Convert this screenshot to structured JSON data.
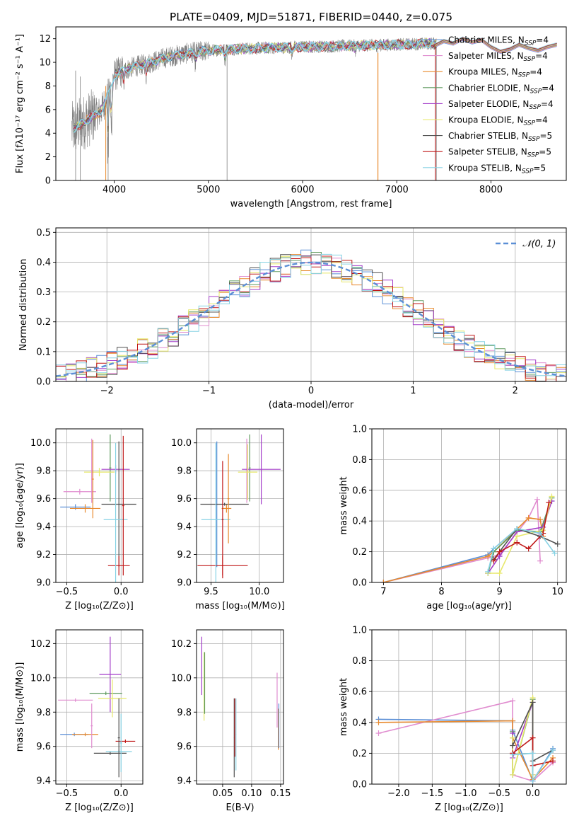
{
  "figure_title": "PLATE=0409, MJD=51871, FIBERID=0440, z=0.075",
  "colors": {
    "Chabrier MILES": "#5b8fd6",
    "Salpeter MILES": "#e08ccf",
    "Kroupa MILES": "#e88a2e",
    "Chabrier ELODIE": "#5f9a5f",
    "Salpeter ELODIE": "#a43ec9",
    "Kroupa ELODIE": "#e7e86a",
    "Chabrier STELIB": "#505050",
    "Salpeter STELIB": "#c01818",
    "Kroupa STELIB": "#86d2e4",
    "data": "#808080",
    "normal": "#5b8fd6"
  },
  "chart_data": [
    {
      "id": "spectrum",
      "type": "line",
      "title": "PLATE=0409, MJD=51871, FIBERID=0440, z=0.075",
      "xlabel": "wavelength [Angstrom, rest frame]",
      "ylabel": "Flux [fλ10⁻¹⁷ erg cm⁻² s⁻¹ A⁻¹]",
      "xlim": [
        3380,
        8800
      ],
      "ylim": [
        0,
        13
      ],
      "xticks": [
        4000,
        5000,
        6000,
        7000,
        8000
      ],
      "yticks": [
        0,
        2,
        4,
        6,
        8,
        10,
        12
      ],
      "grid": false,
      "legend": "right",
      "legend_entries": [
        {
          "base": "Chabrier MILES, N",
          "sub": "SSP",
          "tail": "=4"
        },
        {
          "base": "Salpeter MILES, N",
          "sub": "SSP",
          "tail": "=4"
        },
        {
          "base": "Kroupa MILES, N",
          "sub": "SSP",
          "tail": "=4"
        },
        {
          "base": "Chabrier ELODIE, N",
          "sub": "SSP",
          "tail": "=4"
        },
        {
          "base": "Salpeter ELODIE, N",
          "sub": "SSP",
          "tail": "=4"
        },
        {
          "base": "Kroupa ELODIE, N",
          "sub": "SSP",
          "tail": "=4"
        },
        {
          "base": "Chabrier STELIB, N",
          "sub": "SSP",
          "tail": "=5"
        },
        {
          "base": "Salpeter STELIB, N",
          "sub": "SSP",
          "tail": "=5"
        },
        {
          "base": "Kroupa STELIB, N",
          "sub": "SSP",
          "tail": "=5"
        }
      ],
      "continuum": {
        "x": [
          3550,
          3650,
          3750,
          3850,
          3950,
          4000,
          4100,
          4200,
          4300,
          4400,
          4500,
          4600,
          4800,
          5000,
          5200,
          5500,
          6000,
          6500,
          7000,
          7400
        ],
        "y": [
          4.3,
          4.8,
          5.3,
          5.8,
          7.4,
          8.9,
          9.3,
          9.6,
          9.8,
          10.0,
          10.3,
          10.5,
          10.8,
          11.0,
          11.1,
          11.2,
          11.3,
          11.4,
          11.5,
          11.6
        ]
      },
      "models_extend": {
        "x": [
          7400,
          7500,
          7600,
          7700,
          7800,
          7900,
          8000,
          8100,
          8200,
          8300,
          8400,
          8500,
          8600,
          8700
        ],
        "y": [
          11.4,
          11.8,
          11.6,
          12.0,
          11.7,
          11.9,
          11.3,
          10.9,
          11.1,
          11.5,
          11.2,
          11.0,
          11.3,
          11.5
        ]
      },
      "data_range": [
        3550,
        7420
      ]
    },
    {
      "id": "residuals",
      "type": "line",
      "xlabel": "(data-model)/error",
      "ylabel": "Normed distribution",
      "xlim": [
        -2.5,
        2.5
      ],
      "ylim": [
        0,
        0.515
      ],
      "xticks": [
        -2,
        -1,
        0,
        1,
        2
      ],
      "yticks": [
        0.0,
        0.1,
        0.2,
        0.3,
        0.4,
        0.5
      ],
      "grid": true,
      "legend": "top-right",
      "legend_entries": [
        "𝒩(0, 1)"
      ],
      "bin_width": 0.1
    },
    {
      "id": "age_vs_Z",
      "type": "scatter",
      "xlabel": "Z [log₁₀(Z/Z⊙)]",
      "ylabel": "age [log₁₀(age/yr)]",
      "xlim": [
        -0.6,
        0.2
      ],
      "ylim": [
        9.0,
        10.1
      ],
      "xticks": [
        -0.5,
        0.0
      ],
      "yticks": [
        9.0,
        9.2,
        9.4,
        9.6,
        9.8,
        10.0
      ],
      "grid": true,
      "points": [
        {
          "model": "Chabrier MILES",
          "x": -0.42,
          "xerr": 0.14,
          "y": 9.54,
          "yerr": 0.02
        },
        {
          "model": "Salpeter MILES",
          "x": -0.38,
          "xerr": 0.15,
          "y": 9.65,
          "yerr": 0.02
        },
        {
          "model": "Kroupa MILES",
          "x": -0.33,
          "xerr": 0.14,
          "y": 9.53,
          "yerr": 0.03
        },
        {
          "model": "Chabrier ELODIE",
          "x": -0.1,
          "xerr": 0.01,
          "y": 9.82,
          "yerr": 0.24
        },
        {
          "model": "Salpeter ELODIE",
          "x": -0.05,
          "xerr": 0.13,
          "y": 9.81,
          "yerr": 0.03
        },
        {
          "model": "Kroupa ELODIE",
          "x": -0.2,
          "xerr": 0.14,
          "y": 9.79,
          "yerr": 0.03
        },
        {
          "model": "Chabrier STELIB",
          "x": -0.02,
          "xerr": 0.16,
          "y": 9.56,
          "yerr": 0.45
        },
        {
          "model": "Salpeter STELIB",
          "x": -0.02,
          "xerr": 0.1,
          "y": 9.12,
          "yerr": 0.07
        },
        {
          "model": "Kroupa STELIB",
          "x": -0.05,
          "xerr": 0.11,
          "y": 9.45,
          "yerr": 0.55
        },
        {
          "model": "Salpeter MILES",
          "x": -0.27,
          "xerr": 0.01,
          "y": 9.8,
          "yerr": 0.23
        },
        {
          "model": "Kroupa MILES",
          "x": -0.26,
          "xerr": 0.01,
          "y": 9.74,
          "yerr": 0.28
        },
        {
          "model": "Salpeter STELIB",
          "x": 0.02,
          "xerr": 0.01,
          "y": 9.55,
          "yerr": 0.5
        }
      ]
    },
    {
      "id": "age_vs_mass",
      "type": "scatter",
      "xlabel": "mass [log₁₀(M/M⊙)]",
      "ylabel": "",
      "xlim": [
        9.35,
        10.25
      ],
      "ylim": [
        9.0,
        10.1
      ],
      "xticks": [
        9.5,
        10.0
      ],
      "yticks": [
        9.0,
        9.2,
        9.4,
        9.6,
        9.8,
        10.0
      ],
      "grid": true,
      "points": [
        {
          "model": "Chabrier MILES",
          "x": 9.56,
          "xerr": 0.01,
          "y": 9.56,
          "yerr": 0.45
        },
        {
          "model": "Salpeter MILES",
          "x": 9.87,
          "xerr": 0.01,
          "y": 9.8,
          "yerr": 0.23
        },
        {
          "model": "Kroupa MILES",
          "x": 9.66,
          "xerr": 0.05,
          "y": 9.53,
          "yerr": 0.03
        },
        {
          "model": "Chabrier ELODIE",
          "x": 9.9,
          "xerr": 0.01,
          "y": 9.82,
          "yerr": 0.24
        },
        {
          "model": "Salpeter ELODIE",
          "x": 10.02,
          "xerr": 0.2,
          "y": 9.81,
          "yerr": 0.25
        },
        {
          "model": "Kroupa ELODIE",
          "x": 9.88,
          "xerr": 0.1,
          "y": 9.79,
          "yerr": 0.2
        },
        {
          "model": "Chabrier STELIB",
          "x": 9.64,
          "xerr": 0.25,
          "y": 9.56,
          "yerr": 0.01
        },
        {
          "model": "Salpeter STELIB",
          "x": 9.62,
          "xerr": 0.26,
          "y": 9.12,
          "yerr": 0.07
        },
        {
          "model": "Kroupa STELIB",
          "x": 9.55,
          "xerr": 0.15,
          "y": 9.45,
          "yerr": 0.55
        },
        {
          "model": "Salpeter STELIB",
          "x": 9.62,
          "xerr": 0.01,
          "y": 9.45,
          "yerr": 0.42
        },
        {
          "model": "Kroupa MILES",
          "x": 9.68,
          "xerr": 0.01,
          "y": 9.6,
          "yerr": 0.32
        }
      ]
    },
    {
      "id": "mass_weight_vs_age",
      "type": "line",
      "xlabel": "age [log₁₀(age/yr)]",
      "ylabel": "mass weight",
      "xlim": [
        6.8,
        10.15
      ],
      "ylim": [
        0.0,
        1.0
      ],
      "xticks": [
        7,
        8,
        9,
        10
      ],
      "yticks": [
        0.0,
        0.2,
        0.4,
        0.6,
        0.8,
        1.0
      ],
      "grid": true,
      "series": [
        {
          "model": "Chabrier MILES",
          "x": [
            7.0,
            8.8,
            8.9,
            9.3,
            9.7,
            9.9
          ],
          "y": [
            0.0,
            0.18,
            0.22,
            0.35,
            0.32,
            0.53
          ]
        },
        {
          "model": "Salpeter MILES",
          "x": [
            7.0,
            8.8,
            9.0,
            9.5,
            9.65,
            9.7
          ],
          "y": [
            0.0,
            0.16,
            0.18,
            0.42,
            0.54,
            0.14
          ]
        },
        {
          "model": "Kroupa MILES",
          "x": [
            7.0,
            8.8,
            8.9,
            9.5,
            9.7,
            9.75
          ],
          "y": [
            0.0,
            0.17,
            0.2,
            0.42,
            0.41,
            0.3
          ]
        },
        {
          "model": "Chabrier ELODIE",
          "x": [
            8.8,
            8.9,
            9.3,
            9.7,
            9.9
          ],
          "y": [
            0.06,
            0.2,
            0.34,
            0.33,
            0.55
          ]
        },
        {
          "model": "Salpeter ELODIE",
          "x": [
            8.8,
            9.0,
            9.3,
            9.75,
            9.9
          ],
          "y": [
            0.06,
            0.17,
            0.33,
            0.36,
            0.53
          ]
        },
        {
          "model": "Kroupa ELODIE",
          "x": [
            8.8,
            9.0,
            9.3,
            9.75,
            9.9
          ],
          "y": [
            0.06,
            0.06,
            0.3,
            0.34,
            0.56
          ]
        },
        {
          "model": "Chabrier STELIB",
          "x": [
            8.9,
            9.3,
            9.7,
            10.0
          ],
          "y": [
            0.15,
            0.35,
            0.3,
            0.25
          ]
        },
        {
          "model": "Salpeter STELIB",
          "x": [
            8.9,
            9.0,
            9.3,
            9.5,
            9.75,
            9.85
          ],
          "y": [
            0.14,
            0.2,
            0.26,
            0.22,
            0.32,
            0.52
          ]
        },
        {
          "model": "Kroupa STELIB",
          "x": [
            8.8,
            8.9,
            9.3,
            9.7,
            9.95
          ],
          "y": [
            0.07,
            0.22,
            0.35,
            0.32,
            0.19
          ]
        }
      ]
    },
    {
      "id": "mass_vs_Z",
      "type": "scatter",
      "xlabel": "Z [log₁₀(Z/Z⊙)]",
      "ylabel": "mass [log₁₀(M/M⊙)]",
      "xlim": [
        -0.6,
        0.2
      ],
      "ylim": [
        9.38,
        10.28
      ],
      "xticks": [
        -0.5,
        0.0
      ],
      "yticks": [
        9.4,
        9.6,
        9.8,
        10.0,
        10.2
      ],
      "grid": true,
      "points": [
        {
          "model": "Chabrier MILES",
          "x": -0.43,
          "xerr": 0.13,
          "y": 9.67,
          "yerr": 0.01
        },
        {
          "model": "Salpeter MILES",
          "x": -0.42,
          "xerr": 0.16,
          "y": 9.87,
          "yerr": 0.01
        },
        {
          "model": "Kroupa MILES",
          "x": -0.33,
          "xerr": 0.12,
          "y": 9.67,
          "yerr": 0.01
        },
        {
          "model": "Chabrier ELODIE",
          "x": -0.14,
          "xerr": 0.15,
          "y": 9.91,
          "yerr": 0.01
        },
        {
          "model": "Salpeter ELODIE",
          "x": -0.1,
          "xerr": 0.1,
          "y": 10.02,
          "yerr": 0.22
        },
        {
          "model": "Kroupa ELODIE",
          "x": -0.08,
          "xerr": 0.13,
          "y": 9.88,
          "yerr": 0.11
        },
        {
          "model": "Chabrier STELIB",
          "x": -0.1,
          "xerr": 0.15,
          "y": 9.56,
          "yerr": 0.01
        },
        {
          "model": "Salpeter STELIB",
          "x": 0.04,
          "xerr": 0.09,
          "y": 9.63,
          "yerr": 0.01
        },
        {
          "model": "Kroupa STELIB",
          "x": -0.02,
          "xerr": 0.12,
          "y": 9.57,
          "yerr": 0.01
        },
        {
          "model": "Salpeter MILES",
          "x": -0.27,
          "xerr": 0.01,
          "y": 9.72,
          "yerr": 0.13
        },
        {
          "model": "Chabrier STELIB",
          "x": -0.02,
          "xerr": 0.01,
          "y": 9.65,
          "yerr": 0.23
        },
        {
          "model": "Kroupa STELIB",
          "x": 0.0,
          "xerr": 0.01,
          "y": 9.62,
          "yerr": 0.17
        }
      ]
    },
    {
      "id": "mass_vs_ebv",
      "type": "scatter",
      "xlabel": "E(B-V)",
      "ylabel": "",
      "xlim": [
        0.005,
        0.155
      ],
      "ylim": [
        9.38,
        10.28
      ],
      "xticks": [
        0.05,
        0.1,
        0.15
      ],
      "xticklabels": [
        "0.05",
        "0.10",
        "0.15"
      ],
      "yticks": [
        9.4,
        9.6,
        9.8,
        10.0,
        10.2
      ],
      "grid": true,
      "points": [
        {
          "model": "Salpeter ELODIE",
          "x": 0.014,
          "xerr": 0.0005,
          "y": 10.07,
          "yerr": 0.17
        },
        {
          "model": "Kroupa ELODIE",
          "x": 0.018,
          "xerr": 0.0005,
          "y": 9.95,
          "yerr": 0.2
        },
        {
          "model": "Chabrier ELODIE",
          "x": 0.019,
          "xerr": 0.0005,
          "y": 9.97,
          "yerr": 0.18
        },
        {
          "model": "Chabrier STELIB",
          "x": 0.07,
          "xerr": 0.0005,
          "y": 9.65,
          "yerr": 0.23
        },
        {
          "model": "Salpeter STELIB",
          "x": 0.071,
          "xerr": 0.0005,
          "y": 9.71,
          "yerr": 0.17
        },
        {
          "model": "Kroupa STELIB",
          "x": 0.073,
          "xerr": 0.0005,
          "y": 9.67,
          "yerr": 0.21
        },
        {
          "model": "Salpeter MILES",
          "x": 0.144,
          "xerr": 0.0005,
          "y": 9.87,
          "yerr": 0.16
        },
        {
          "model": "Kroupa MILES",
          "x": 0.146,
          "xerr": 0.0005,
          "y": 9.7,
          "yerr": 0.12
        },
        {
          "model": "Chabrier MILES",
          "x": 0.147,
          "xerr": 0.0005,
          "y": 9.72,
          "yerr": 0.13
        }
      ]
    },
    {
      "id": "mass_weight_vs_Z",
      "type": "line",
      "xlabel": "Z [log₁₀(Z/Z⊙)]",
      "ylabel": "mass weight",
      "xlim": [
        -2.4,
        0.5
      ],
      "ylim": [
        0.0,
        1.0
      ],
      "xticks": [
        -2.0,
        -1.5,
        -1.0,
        -0.5,
        0.0
      ],
      "xticklabels": [
        "−2.0",
        "−1.5",
        "−1.0",
        "−0.5",
        "0.0"
      ],
      "yticks": [
        0.0,
        0.2,
        0.4,
        0.6,
        0.8,
        1.0
      ],
      "grid": true,
      "series": [
        {
          "model": "Chabrier MILES",
          "x": [
            -2.3,
            -0.3,
            -0.3,
            0.0,
            0.3
          ],
          "y": [
            0.42,
            0.41,
            0.35,
            0.02,
            0.23
          ]
        },
        {
          "model": "Salpeter MILES",
          "x": [
            -2.3,
            -0.3,
            -0.3,
            0.0,
            0.3
          ],
          "y": [
            0.33,
            0.54,
            0.06,
            0.02,
            0.14
          ]
        },
        {
          "model": "Kroupa MILES",
          "x": [
            -2.3,
            -0.3,
            -0.3,
            0.0,
            0.3
          ],
          "y": [
            0.4,
            0.41,
            0.3,
            0.03,
            0.17
          ]
        },
        {
          "model": "Chabrier ELODIE",
          "x": [
            -0.3,
            -0.3,
            0.0,
            0.0
          ],
          "y": [
            0.34,
            0.06,
            0.55,
            0.06
          ]
        },
        {
          "model": "Salpeter ELODIE",
          "x": [
            -0.3,
            -0.3,
            0.0,
            0.0
          ],
          "y": [
            0.33,
            0.17,
            0.53,
            0.06
          ]
        },
        {
          "model": "Kroupa ELODIE",
          "x": [
            -0.3,
            -0.3,
            0.0,
            0.0
          ],
          "y": [
            0.3,
            0.06,
            0.56,
            0.06
          ]
        },
        {
          "model": "Chabrier STELIB",
          "x": [
            -0.3,
            0.0,
            0.0,
            0.3
          ],
          "y": [
            0.25,
            0.53,
            0.15,
            0.22
          ]
        },
        {
          "model": "Salpeter STELIB",
          "x": [
            -0.3,
            0.0,
            0.0,
            0.3
          ],
          "y": [
            0.2,
            0.3,
            0.12,
            0.15
          ]
        },
        {
          "model": "Kroupa STELIB",
          "x": [
            -0.3,
            0.0,
            0.0,
            0.3
          ],
          "y": [
            0.19,
            0.2,
            0.02,
            0.22
          ]
        }
      ]
    }
  ]
}
